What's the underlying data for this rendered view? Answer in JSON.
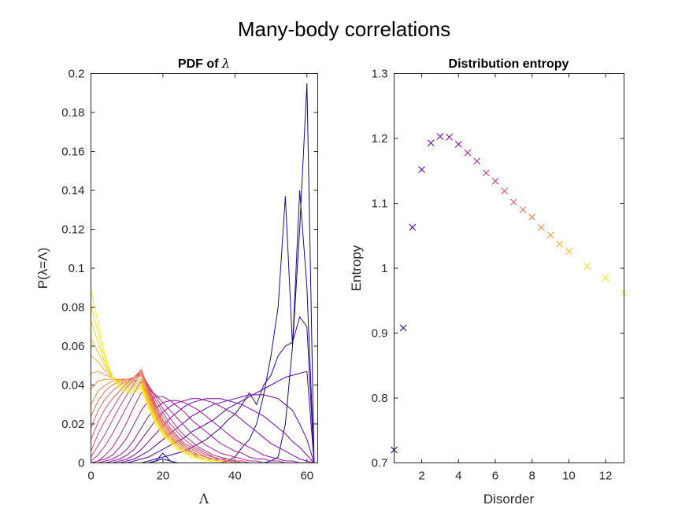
{
  "figure": {
    "title": "Many-body correlations"
  },
  "chart_data": [
    {
      "type": "line",
      "title_prefix": "PDF of ",
      "title_symbol": "λ",
      "xlabel": "Λ",
      "ylabel": "P(λ=Λ)",
      "xlim": [
        0,
        63
      ],
      "ylim": [
        0,
        0.2
      ],
      "xticks": [
        0,
        20,
        40,
        60
      ],
      "yticks": [
        0,
        0.02,
        0.04,
        0.06,
        0.08,
        0.1,
        0.12,
        0.14,
        0.16,
        0.18,
        0.2
      ],
      "colormap": "plasma",
      "grid": false,
      "x": [
        0,
        2,
        4,
        6,
        8,
        10,
        12,
        14,
        16,
        18,
        20,
        22,
        24,
        26,
        28,
        30,
        32,
        34,
        36,
        38,
        40,
        42,
        44,
        46,
        48,
        50,
        52,
        54,
        56,
        58,
        60,
        62
      ],
      "series": [
        {
          "values": [
            0,
            0,
            0,
            0,
            0,
            0,
            0,
            0,
            0,
            0.001,
            0.005,
            0.001,
            0,
            0,
            0,
            0,
            0,
            0,
            0,
            0,
            0,
            0,
            0,
            0,
            0,
            0.001,
            0.003,
            0.02,
            0.06,
            0.12,
            0.195,
            0
          ]
        },
        {
          "values": [
            0,
            0,
            0,
            0,
            0,
            0,
            0,
            0,
            0,
            0.001,
            0.002,
            0.001,
            0,
            0,
            0,
            0,
            0,
            0,
            0,
            0.001,
            0.003,
            0.008,
            0.012,
            0.02,
            0.035,
            0.055,
            0.08,
            0.137,
            0.06,
            0.14,
            0.09,
            0
          ]
        },
        {
          "values": [
            0,
            0,
            0,
            0,
            0,
            0,
            0,
            0,
            0.001,
            0.002,
            0.003,
            0.004,
            0.005,
            0.006,
            0.008,
            0.01,
            0.012,
            0.015,
            0.018,
            0.022,
            0.025,
            0.03,
            0.036,
            0.03,
            0.04,
            0.045,
            0.055,
            0.06,
            0.062,
            0.075,
            0.07,
            0
          ]
        },
        {
          "values": [
            0,
            0,
            0,
            0,
            0,
            0,
            0.001,
            0.002,
            0.003,
            0.005,
            0.007,
            0.009,
            0.011,
            0.013,
            0.016,
            0.018,
            0.02,
            0.022,
            0.025,
            0.028,
            0.03,
            0.032,
            0.034,
            0.036,
            0.038,
            0.04,
            0.042,
            0.044,
            0.045,
            0.046,
            0.047,
            0
          ]
        },
        {
          "values": [
            0,
            0,
            0,
            0,
            0,
            0.001,
            0.002,
            0.004,
            0.006,
            0.009,
            0.012,
            0.015,
            0.018,
            0.021,
            0.024,
            0.026,
            0.028,
            0.03,
            0.031,
            0.032,
            0.033,
            0.034,
            0.035,
            0.035,
            0.035,
            0.034,
            0.033,
            0.03,
            0.027,
            0.02,
            0.012,
            0
          ]
        },
        {
          "values": [
            0,
            0,
            0,
            0,
            0.001,
            0.002,
            0.004,
            0.007,
            0.011,
            0.015,
            0.019,
            0.023,
            0.026,
            0.029,
            0.031,
            0.032,
            0.033,
            0.033,
            0.033,
            0.032,
            0.031,
            0.03,
            0.028,
            0.026,
            0.024,
            0.021,
            0.018,
            0.015,
            0.011,
            0.008,
            0.004,
            0
          ]
        },
        {
          "values": [
            0,
            0,
            0,
            0.001,
            0.002,
            0.004,
            0.007,
            0.012,
            0.017,
            0.022,
            0.026,
            0.029,
            0.031,
            0.032,
            0.033,
            0.033,
            0.032,
            0.031,
            0.029,
            0.027,
            0.025,
            0.022,
            0.019,
            0.016,
            0.013,
            0.01,
            0.008,
            0.006,
            0.004,
            0.002,
            0.001,
            0
          ]
        },
        {
          "values": [
            0,
            0,
            0.001,
            0.002,
            0.004,
            0.007,
            0.012,
            0.018,
            0.024,
            0.028,
            0.031,
            0.032,
            0.032,
            0.031,
            0.029,
            0.027,
            0.024,
            0.021,
            0.018,
            0.015,
            0.012,
            0.01,
            0.008,
            0.006,
            0.004,
            0.003,
            0.002,
            0.001,
            0.001,
            0,
            0,
            0
          ]
        },
        {
          "values": [
            0,
            0.001,
            0.002,
            0.004,
            0.008,
            0.013,
            0.02,
            0.027,
            0.032,
            0.034,
            0.034,
            0.032,
            0.029,
            0.026,
            0.022,
            0.019,
            0.016,
            0.013,
            0.01,
            0.008,
            0.006,
            0.005,
            0.003,
            0.002,
            0.002,
            0.001,
            0.001,
            0,
            0,
            0,
            0,
            0
          ]
        },
        {
          "values": [
            0,
            0.001,
            0.004,
            0.008,
            0.014,
            0.021,
            0.029,
            0.036,
            0.038,
            0.035,
            0.031,
            0.027,
            0.023,
            0.019,
            0.015,
            0.012,
            0.009,
            0.007,
            0.005,
            0.004,
            0.003,
            0.002,
            0.001,
            0.001,
            0,
            0,
            0,
            0,
            0,
            0,
            0,
            0
          ]
        },
        {
          "values": [
            0.001,
            0.004,
            0.009,
            0.015,
            0.022,
            0.029,
            0.036,
            0.042,
            0.04,
            0.034,
            0.028,
            0.023,
            0.018,
            0.014,
            0.011,
            0.008,
            0.006,
            0.004,
            0.003,
            0.002,
            0.001,
            0.001,
            0,
            0,
            0,
            0,
            0,
            0,
            0,
            0,
            0,
            0
          ]
        },
        {
          "values": [
            0.003,
            0.009,
            0.015,
            0.022,
            0.029,
            0.035,
            0.041,
            0.046,
            0.04,
            0.032,
            0.026,
            0.02,
            0.016,
            0.012,
            0.009,
            0.007,
            0.005,
            0.003,
            0.002,
            0.002,
            0.001,
            0.001,
            0,
            0,
            0,
            0,
            0,
            0,
            0,
            0,
            0,
            0
          ]
        },
        {
          "values": [
            0.006,
            0.015,
            0.022,
            0.028,
            0.034,
            0.039,
            0.043,
            0.047,
            0.039,
            0.03,
            0.024,
            0.018,
            0.014,
            0.01,
            0.008,
            0.006,
            0.004,
            0.003,
            0.002,
            0.001,
            0.001,
            0,
            0,
            0,
            0,
            0,
            0,
            0,
            0,
            0,
            0,
            0
          ]
        },
        {
          "values": [
            0.012,
            0.021,
            0.028,
            0.033,
            0.037,
            0.041,
            0.044,
            0.048,
            0.038,
            0.029,
            0.022,
            0.017,
            0.013,
            0.009,
            0.007,
            0.005,
            0.003,
            0.002,
            0.002,
            0.001,
            0.001,
            0,
            0,
            0,
            0,
            0,
            0,
            0,
            0,
            0,
            0,
            0
          ]
        },
        {
          "values": [
            0.018,
            0.027,
            0.033,
            0.037,
            0.04,
            0.042,
            0.044,
            0.048,
            0.037,
            0.028,
            0.021,
            0.016,
            0.012,
            0.008,
            0.006,
            0.004,
            0.003,
            0.002,
            0.001,
            0.001,
            0,
            0,
            0,
            0,
            0,
            0,
            0,
            0,
            0,
            0,
            0,
            0
          ]
        },
        {
          "values": [
            0.024,
            0.032,
            0.037,
            0.04,
            0.042,
            0.043,
            0.044,
            0.047,
            0.036,
            0.027,
            0.02,
            0.015,
            0.011,
            0.008,
            0.005,
            0.004,
            0.003,
            0.002,
            0.001,
            0.001,
            0,
            0,
            0,
            0,
            0,
            0,
            0,
            0,
            0,
            0,
            0,
            0
          ]
        },
        {
          "values": [
            0.03,
            0.037,
            0.04,
            0.042,
            0.043,
            0.043,
            0.043,
            0.046,
            0.035,
            0.026,
            0.019,
            0.014,
            0.01,
            0.007,
            0.005,
            0.003,
            0.002,
            0.002,
            0.001,
            0.001,
            0,
            0,
            0,
            0,
            0,
            0,
            0,
            0,
            0,
            0,
            0,
            0
          ]
        },
        {
          "values": [
            0.038,
            0.042,
            0.043,
            0.043,
            0.043,
            0.042,
            0.042,
            0.045,
            0.034,
            0.025,
            0.018,
            0.013,
            0.01,
            0.007,
            0.005,
            0.003,
            0.002,
            0.001,
            0.001,
            0,
            0,
            0,
            0,
            0,
            0,
            0,
            0,
            0,
            0,
            0,
            0,
            0
          ]
        },
        {
          "values": [
            0.046,
            0.047,
            0.045,
            0.044,
            0.042,
            0.041,
            0.041,
            0.043,
            0.033,
            0.024,
            0.017,
            0.013,
            0.009,
            0.006,
            0.004,
            0.003,
            0.002,
            0.001,
            0.001,
            0,
            0,
            0,
            0,
            0,
            0,
            0,
            0,
            0,
            0,
            0,
            0,
            0
          ]
        },
        {
          "values": [
            0.055,
            0.052,
            0.047,
            0.044,
            0.042,
            0.04,
            0.04,
            0.042,
            0.032,
            0.023,
            0.017,
            0.012,
            0.009,
            0.006,
            0.004,
            0.003,
            0.002,
            0.001,
            0.001,
            0,
            0,
            0,
            0,
            0,
            0,
            0,
            0,
            0,
            0,
            0,
            0,
            0
          ]
        },
        {
          "values": [
            0.064,
            0.057,
            0.049,
            0.044,
            0.041,
            0.039,
            0.039,
            0.041,
            0.031,
            0.023,
            0.016,
            0.012,
            0.008,
            0.006,
            0.004,
            0.003,
            0.002,
            0.001,
            0.001,
            0,
            0,
            0,
            0,
            0,
            0,
            0,
            0,
            0,
            0,
            0,
            0,
            0
          ]
        },
        {
          "values": [
            0.073,
            0.062,
            0.051,
            0.044,
            0.04,
            0.038,
            0.038,
            0.04,
            0.03,
            0.022,
            0.016,
            0.011,
            0.008,
            0.006,
            0.004,
            0.002,
            0.002,
            0.001,
            0.001,
            0,
            0,
            0,
            0,
            0,
            0,
            0,
            0,
            0,
            0,
            0,
            0,
            0
          ]
        },
        {
          "values": [
            0.081,
            0.067,
            0.053,
            0.044,
            0.039,
            0.037,
            0.037,
            0.039,
            0.029,
            0.021,
            0.015,
            0.011,
            0.008,
            0.005,
            0.004,
            0.002,
            0.002,
            0.001,
            0,
            0,
            0,
            0,
            0,
            0,
            0,
            0,
            0,
            0,
            0,
            0,
            0,
            0
          ]
        },
        {
          "values": [
            0.089,
            0.072,
            0.055,
            0.044,
            0.038,
            0.036,
            0.036,
            0.038,
            0.028,
            0.02,
            0.014,
            0.01,
            0.007,
            0.005,
            0.003,
            0.002,
            0.001,
            0.001,
            0,
            0,
            0,
            0,
            0,
            0,
            0,
            0,
            0,
            0,
            0,
            0,
            0,
            0
          ]
        }
      ]
    },
    {
      "type": "scatter",
      "title": "Distribution entropy",
      "xlabel": "Disorder",
      "ylabel": "Entropy",
      "xlim": [
        0.5,
        13
      ],
      "ylim": [
        0.7,
        1.3
      ],
      "xticks": [
        2,
        4,
        6,
        8,
        10,
        12
      ],
      "yticks": [
        0.7,
        0.8,
        0.9,
        1.0,
        1.1,
        1.2,
        1.3
      ],
      "marker": "x",
      "colormap": "plasma",
      "grid": false,
      "x": [
        0.5,
        1.0,
        1.5,
        2.0,
        2.5,
        3.0,
        3.5,
        4.0,
        4.5,
        5.0,
        5.5,
        6.0,
        6.5,
        7.0,
        7.5,
        8.0,
        8.5,
        9.0,
        9.5,
        10.0,
        11.0,
        12.0,
        13.0
      ],
      "y": [
        0.72,
        0.908,
        1.063,
        1.152,
        1.193,
        1.203,
        1.202,
        1.191,
        1.178,
        1.165,
        1.147,
        1.134,
        1.119,
        1.102,
        1.09,
        1.079,
        1.063,
        1.051,
        1.037,
        1.026,
        1.003,
        0.985,
        0.962
      ]
    }
  ]
}
